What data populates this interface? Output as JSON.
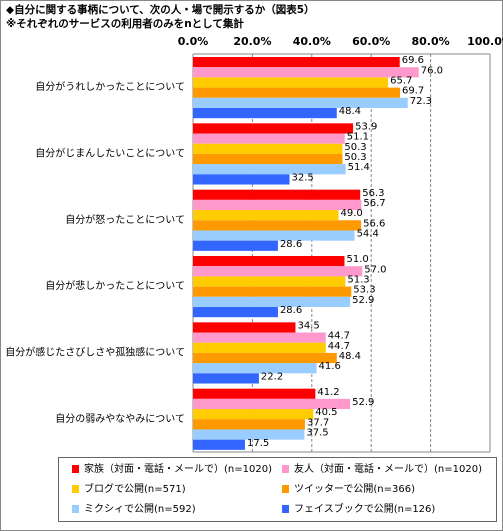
{
  "chart_data": {
    "type": "hbar",
    "title": "◆自分に関する事柄について、次の人・場で開示するか（図表5）",
    "subtitle": "※それぞれのサービスの利用者のみをnとして集計",
    "categories": [
      "自分がうれしかったことについて",
      "自分がじまんしたいことについて",
      "自分が怒ったことについて",
      "自分が悲しかったことについて",
      "自分が感じたさびしさや孤独感について",
      "自分の弱みやなやみについて"
    ],
    "series": [
      {
        "name": "家族（対面・電話・メールで）(n=1020)",
        "color": "#ff0000",
        "values": [
          69.6,
          53.9,
          56.3,
          51.0,
          34.5,
          41.2
        ],
        "value_labels": [
          "69.6",
          "53.9",
          "56.3",
          "51.0",
          "34.5",
          "41.2"
        ]
      },
      {
        "name": "友人（対面・電話・メールで）(n=1020)",
        "color": "#ff99cc",
        "values": [
          76.0,
          51.1,
          56.7,
          57.0,
          44.7,
          52.9
        ],
        "value_labels": [
          "76.0",
          "51.1",
          "56.7",
          "57.0",
          "44.7",
          "52.9"
        ]
      },
      {
        "name": "ブログで公開(n=571)",
        "color": "#ffcc00",
        "values": [
          65.7,
          50.3,
          49.0,
          51.3,
          44.7,
          40.5
        ],
        "value_labels": [
          "65.7",
          "50.3",
          "49.0",
          "51.3",
          "44.7",
          "40.5"
        ]
      },
      {
        "name": "ツイッターで公開(n=366)",
        "color": "#ff9900",
        "values": [
          69.7,
          50.3,
          56.6,
          53.3,
          48.4,
          37.7
        ],
        "value_labels": [
          "69.7",
          "50.3",
          "56.6",
          "53.3",
          "48.4",
          "37.7"
        ]
      },
      {
        "name": "ミクシィで公開(n=592)",
        "color": "#99ccff",
        "values": [
          72.3,
          51.4,
          54.4,
          52.9,
          41.6,
          37.5
        ],
        "value_labels": [
          "72.3",
          "51.4",
          "54.4",
          "52.9",
          "41.6",
          "37.5"
        ]
      },
      {
        "name": "フェイスブックで公開(n=126)",
        "color": "#3366ff",
        "values": [
          48.4,
          32.5,
          28.6,
          28.6,
          22.2,
          17.5
        ],
        "value_labels": [
          "48.4",
          "32.5",
          "28.6",
          "28.6",
          "22.2",
          "17.5"
        ]
      }
    ],
    "xlim": [
      0,
      100
    ],
    "xticks": [
      {
        "value": 0,
        "label": "0.0%"
      },
      {
        "value": 20,
        "label": "20.0%"
      },
      {
        "value": 40,
        "label": "40.0%"
      },
      {
        "value": 60,
        "label": "60.0%"
      },
      {
        "value": 80,
        "label": "80.0%"
      },
      {
        "value": 100,
        "label": "100.0%"
      }
    ],
    "grid": true
  }
}
